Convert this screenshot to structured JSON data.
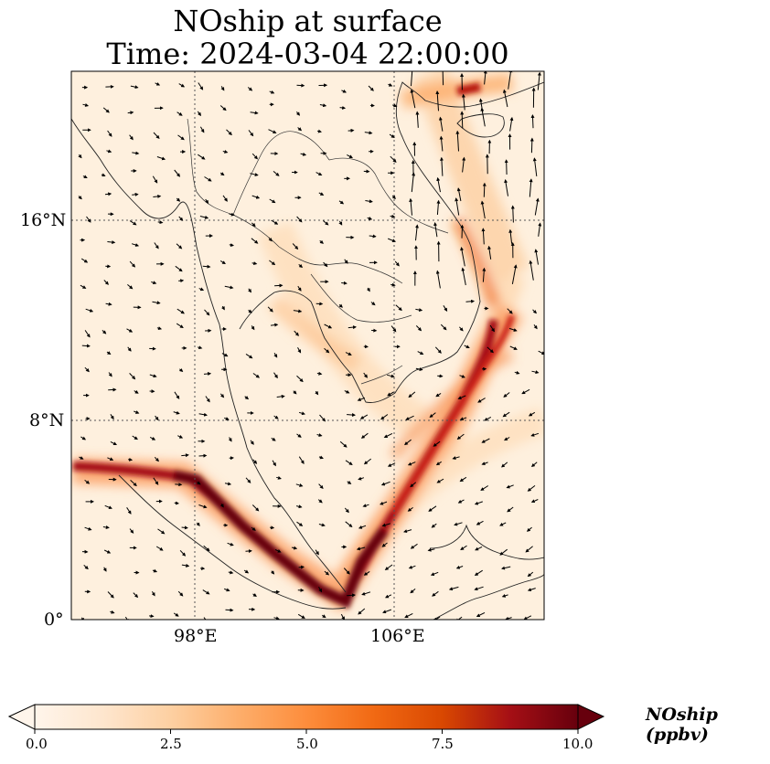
{
  "title_line1": "NOship at surface",
  "title_line2": "Time: 2024-03-04 22:00:00",
  "lat_labels": [
    "16°N",
    "8°N",
    "0°"
  ],
  "lon_labels": [
    "98°E",
    "106°E"
  ],
  "colorbar": {
    "title": "NOship (ppbv)",
    "tick_labels": [
      "0.0",
      "2.5",
      "5.0",
      "7.5",
      "10.0"
    ],
    "colormap": [
      "#fff5eb",
      "#fee6ce",
      "#fdd0a2",
      "#fdae6b",
      "#fd8d3c",
      "#f16913",
      "#d94801",
      "#a50f15",
      "#67000d"
    ]
  },
  "map_extent": {
    "lon_min": 93,
    "lon_max": 112,
    "lat_min": 0,
    "lat_max": 22
  },
  "gridlines": {
    "lon": [
      98,
      106
    ],
    "lat": [
      8,
      16
    ],
    "style": "dotted"
  },
  "colors": {
    "background_field": "#fdebd5",
    "plume": "#67000d",
    "coast": "#333333",
    "vector": "#000000"
  }
}
